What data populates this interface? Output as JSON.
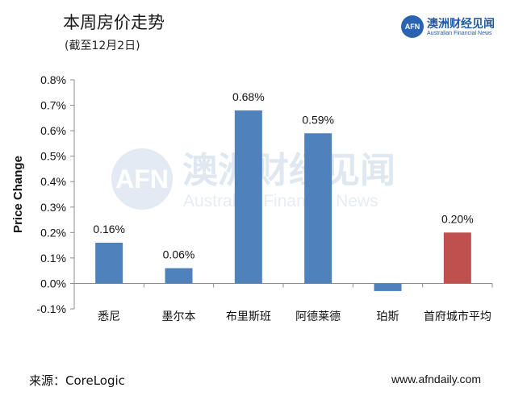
{
  "header": {
    "title": "本周房价走势",
    "subtitle": "(截至12月2日)"
  },
  "logo": {
    "badge": "AFN",
    "name": "澳洲财经见闻",
    "sub": "Australian Financial News"
  },
  "watermark": {
    "badge": "AFN",
    "main": "澳洲财经见闻",
    "sub": "Australian Financial News"
  },
  "footer": {
    "source": "来源：CoreLogic",
    "site": "www.afndaily.com"
  },
  "chart_data": {
    "type": "bar",
    "ylabel": "Price Change",
    "ylim": [
      -0.1,
      0.8
    ],
    "yticks": [
      -0.1,
      0.0,
      0.1,
      0.2,
      0.3,
      0.4,
      0.5,
      0.6,
      0.7,
      0.8
    ],
    "ytick_labels": [
      "-0.1%",
      "0.0%",
      "0.1%",
      "0.2%",
      "0.3%",
      "0.4%",
      "0.5%",
      "0.6%",
      "0.7%",
      "0.8%"
    ],
    "categories": [
      "悉尼",
      "墨尔本",
      "布里斯班",
      "阿德莱德",
      "珀斯",
      "首府城市平均"
    ],
    "values": [
      0.16,
      0.06,
      0.68,
      0.59,
      -0.03,
      0.2
    ],
    "data_labels": [
      "0.16%",
      "0.06%",
      "0.68%",
      "0.59%",
      "",
      "0.20%"
    ],
    "colors": [
      "#4f81bd",
      "#4f81bd",
      "#4f81bd",
      "#4f81bd",
      "#4f81bd",
      "#c0504d"
    ],
    "grid": false
  }
}
